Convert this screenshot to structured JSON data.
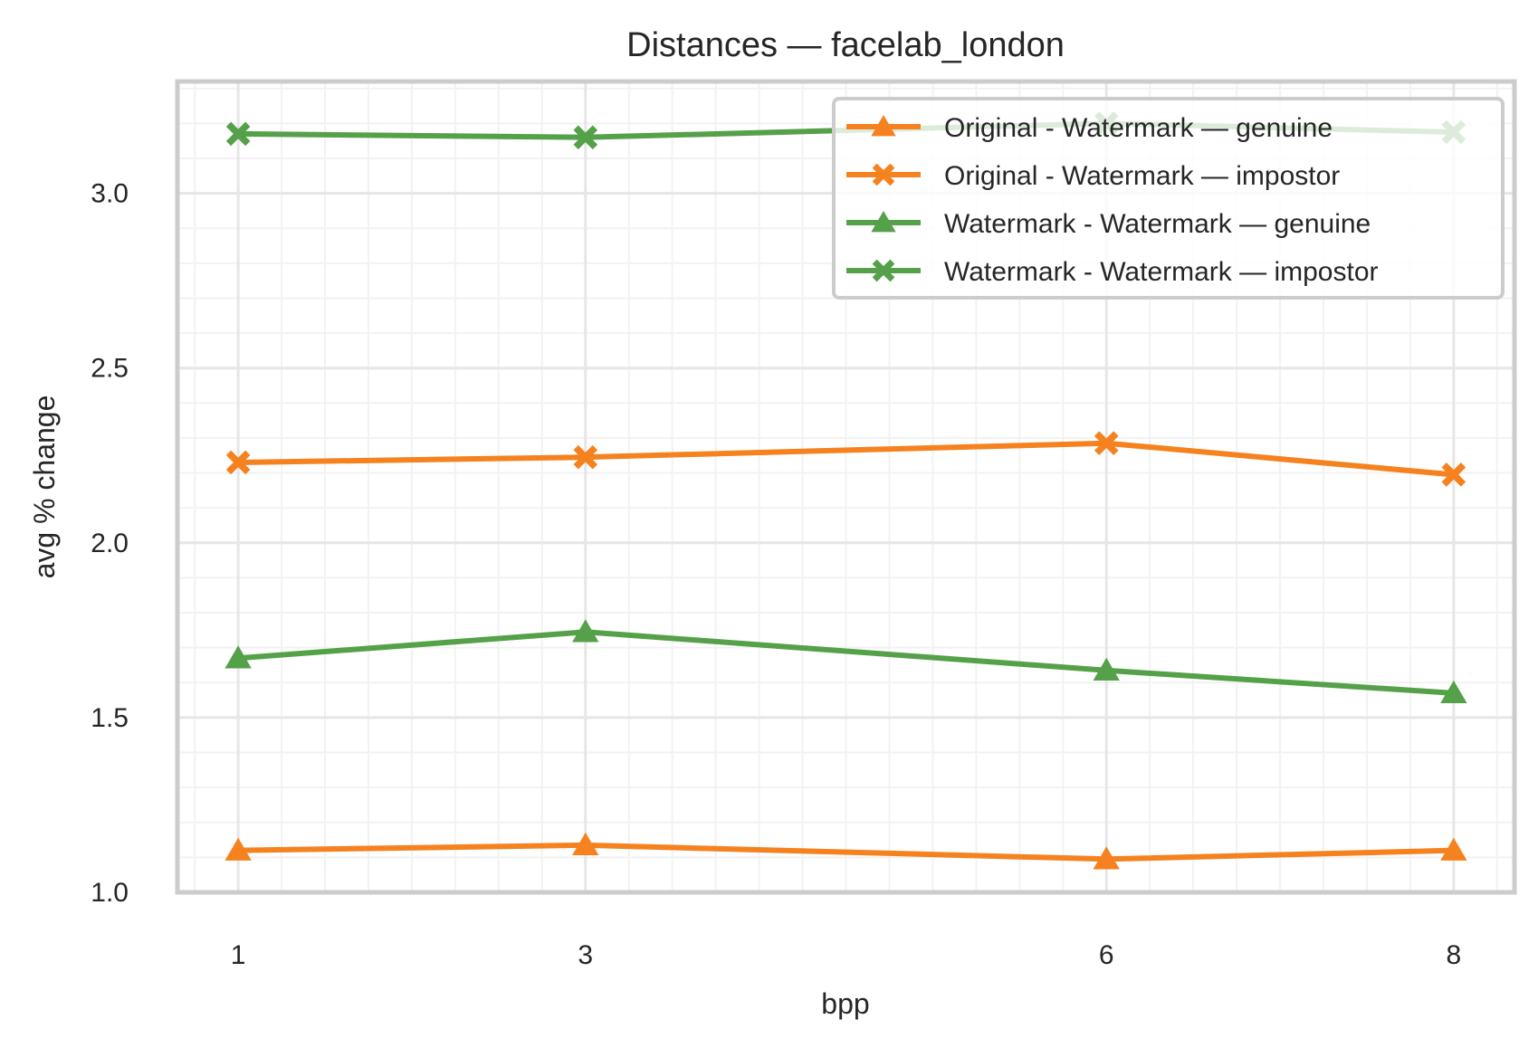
{
  "chart_data": {
    "type": "line",
    "title": "Distances — facelab_london",
    "xlabel": "bpp",
    "ylabel": "avg % change",
    "x": [
      1,
      3,
      6,
      8
    ],
    "x_ticks": [
      "1",
      "3",
      "6",
      "8"
    ],
    "xlim": [
      0.65,
      8.35
    ],
    "ylim": [
      1.0,
      3.32
    ],
    "y_ticks": [
      "1.0",
      "1.5",
      "2.0",
      "2.5",
      "3.0"
    ],
    "y_tick_values": [
      1.0,
      1.5,
      2.0,
      2.5,
      3.0
    ],
    "grid": true,
    "minor_grid": true,
    "legend_position": "top-right",
    "series": [
      {
        "name": "Original - Watermark — genuine",
        "color": "#f5821f",
        "marker": "triangle",
        "values": [
          1.12,
          1.135,
          1.095,
          1.12
        ]
      },
      {
        "name": "Original - Watermark — impostor",
        "color": "#f5821f",
        "marker": "x-filled",
        "values": [
          2.23,
          2.245,
          2.285,
          2.195
        ]
      },
      {
        "name": "Watermark - Watermark — genuine",
        "color": "#55a149",
        "marker": "triangle",
        "values": [
          1.67,
          1.745,
          1.635,
          1.57
        ]
      },
      {
        "name": "Watermark - Watermark — impostor",
        "color": "#55a149",
        "marker": "x-filled",
        "values": [
          3.17,
          3.16,
          3.2,
          3.175
        ]
      }
    ]
  }
}
